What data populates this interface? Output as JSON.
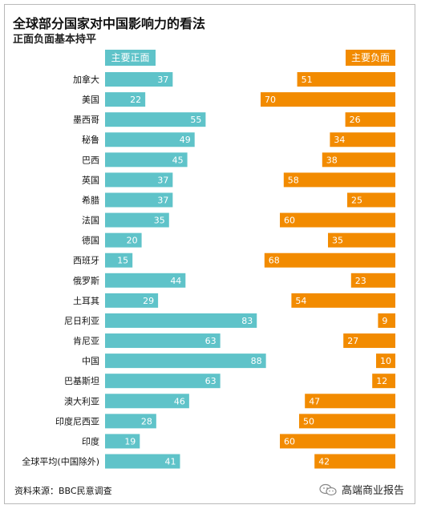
{
  "title": "全球部分国家对中国影响力的看法",
  "subtitle": "正面负面基本持平",
  "source": "资料来源：BBC民意调查",
  "brand": "高端商业报告",
  "brand_icon": "wechat-icon",
  "colors": {
    "positive": "#5fc3c9",
    "negative": "#f28b00"
  },
  "chart_data": {
    "type": "bar",
    "categories": [
      "加拿大",
      "美国",
      "墨西哥",
      "秘鲁",
      "巴西",
      "英国",
      "希腊",
      "法国",
      "德国",
      "西班牙",
      "俄罗斯",
      "土耳其",
      "尼日利亚",
      "肯尼亚",
      "中国",
      "巴基斯坦",
      "澳大利亚",
      "印度尼西亚",
      "印度",
      "全球平均(中国除外)"
    ],
    "series": [
      {
        "name": "主要正面",
        "values": [
          37,
          22,
          55,
          49,
          45,
          37,
          37,
          35,
          20,
          15,
          44,
          29,
          83,
          63,
          88,
          63,
          46,
          28,
          19,
          41
        ]
      },
      {
        "name": "主要负面",
        "values": [
          51,
          70,
          26,
          34,
          38,
          58,
          25,
          60,
          35,
          68,
          23,
          54,
          9,
          27,
          10,
          12,
          47,
          50,
          60,
          42
        ]
      }
    ]
  }
}
